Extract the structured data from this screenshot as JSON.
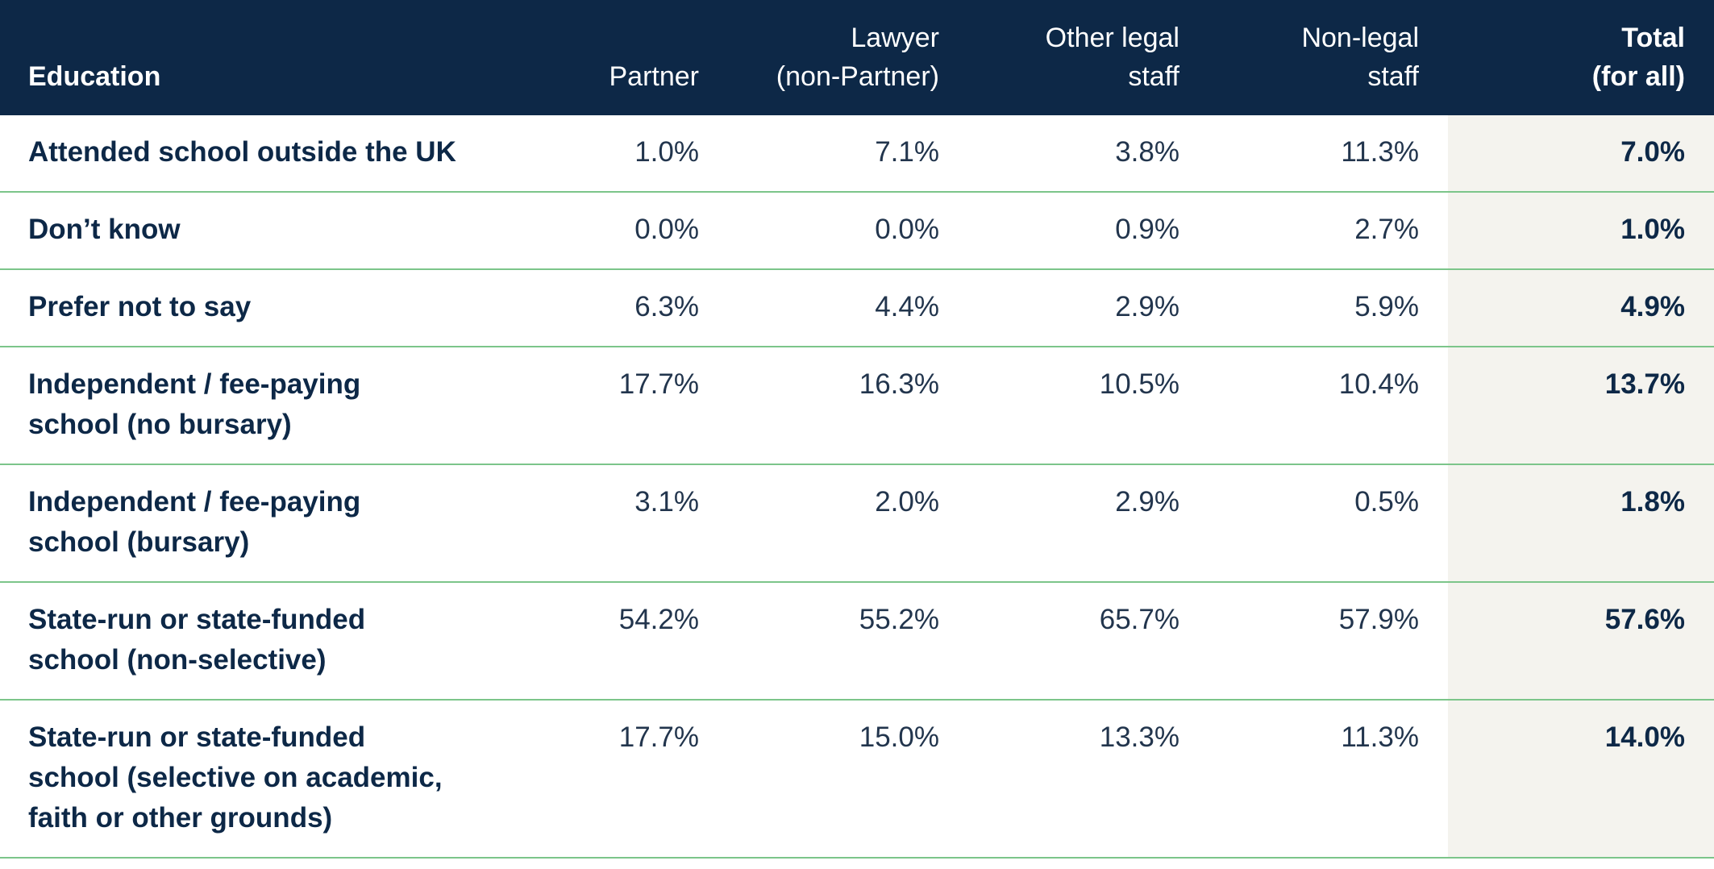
{
  "table": {
    "headers": [
      {
        "lines": [
          "Education"
        ]
      },
      {
        "lines": [
          "Partner"
        ]
      },
      {
        "lines": [
          "Lawyer",
          "(non-Partner)"
        ]
      },
      {
        "lines": [
          "Other legal",
          "staff"
        ]
      },
      {
        "lines": [
          "Non-legal",
          "staff"
        ]
      },
      {
        "lines": [
          "Total",
          "(for all)"
        ]
      }
    ],
    "rows": [
      {
        "label": [
          "Attended school outside the UK"
        ],
        "values": [
          "1.0%",
          "7.1%",
          "3.8%",
          "11.3%"
        ],
        "total": "7.0%"
      },
      {
        "label": [
          "Don’t know"
        ],
        "values": [
          "0.0%",
          "0.0%",
          "0.9%",
          "2.7%"
        ],
        "total": "1.0%"
      },
      {
        "label": [
          "Prefer not to say"
        ],
        "values": [
          "6.3%",
          "4.4%",
          "2.9%",
          "5.9%"
        ],
        "total": "4.9%"
      },
      {
        "label": [
          "Independent / fee-paying",
          "school (no bursary)"
        ],
        "values": [
          "17.7%",
          "16.3%",
          "10.5%",
          "10.4%"
        ],
        "total": "13.7%"
      },
      {
        "label": [
          "Independent / fee-paying",
          "school (bursary)"
        ],
        "values": [
          "3.1%",
          "2.0%",
          "2.9%",
          "0.5%"
        ],
        "total": "1.8%"
      },
      {
        "label": [
          "State-run or state-funded",
          "school (non-selective)"
        ],
        "values": [
          "54.2%",
          "55.2%",
          "65.7%",
          "57.9%"
        ],
        "total": "57.6%"
      },
      {
        "label": [
          "State-run or state-funded",
          "school (selective on academic,",
          "faith or other grounds)"
        ],
        "values": [
          "17.7%",
          "15.0%",
          "13.3%",
          "11.3%"
        ],
        "total": "14.0%"
      }
    ]
  },
  "colors": {
    "header_bg": "#0d2847",
    "header_text": "#ffffff",
    "body_text": "#0d2847",
    "row_divider": "#7cc58a",
    "total_column_bg": "#f4f3ee"
  }
}
